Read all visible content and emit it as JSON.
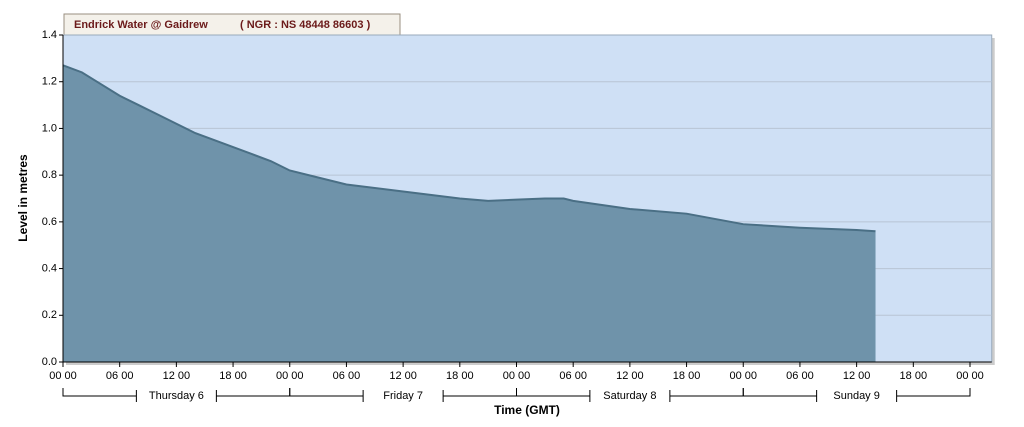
{
  "chart_data": {
    "type": "area",
    "title": "Endrick Water @ Gaidrew",
    "subtitle": "( NGR : NS 48448 86603 )",
    "y_label": "Level in metres",
    "x_label": "Time (GMT)",
    "xlim": [
      0,
      98.3
    ],
    "ylim": [
      0,
      1.4
    ],
    "yticks": [
      {
        "value": 0,
        "label": "0.0"
      },
      0.2,
      0.4,
      0.6,
      0.8,
      {
        "value": 1,
        "label": "1.0"
      },
      1.2,
      1.4
    ],
    "xticks": [
      {
        "value": 0,
        "label": "00 00"
      },
      {
        "value": 6,
        "label": "06 00"
      },
      {
        "value": 12,
        "label": "12 00"
      },
      {
        "value": 18,
        "label": "18 00"
      },
      {
        "value": 24,
        "label": "00 00"
      },
      {
        "value": 30,
        "label": "06 00"
      },
      {
        "value": 36,
        "label": "12 00"
      },
      {
        "value": 42,
        "label": "18 00"
      },
      {
        "value": 48,
        "label": "00 00"
      },
      {
        "value": 54,
        "label": "06 00"
      },
      {
        "value": 60,
        "label": "12 00"
      },
      {
        "value": 66,
        "label": "18 00"
      },
      {
        "value": 72,
        "label": "00 00"
      },
      {
        "value": 78,
        "label": "06 00"
      },
      {
        "value": 84,
        "label": "12 00"
      },
      {
        "value": 90,
        "label": "18 00"
      },
      {
        "value": 96,
        "label": "00 00"
      }
    ],
    "day_labels": [
      {
        "value": 12,
        "label": "Thursday 6"
      },
      {
        "value": 36,
        "label": "Friday 7"
      },
      {
        "value": 60,
        "label": "Saturday 8"
      },
      {
        "value": 84,
        "label": "Sunday 9"
      }
    ],
    "grid": true,
    "series": [
      {
        "name": "Level",
        "color": "#6f93aa",
        "x": [
          0,
          2,
          4,
          6,
          8,
          10,
          12,
          14,
          16,
          18,
          20,
          22,
          24,
          27,
          30,
          36,
          42,
          45,
          48,
          51,
          53,
          54,
          60,
          66,
          72,
          78,
          84,
          86
        ],
        "values": [
          1.27,
          1.24,
          1.19,
          1.14,
          1.1,
          1.06,
          1.02,
          0.98,
          0.95,
          0.92,
          0.89,
          0.86,
          0.82,
          0.79,
          0.76,
          0.73,
          0.7,
          0.69,
          0.695,
          0.7,
          0.7,
          0.69,
          0.655,
          0.635,
          0.59,
          0.575,
          0.565,
          0.56
        ]
      }
    ]
  }
}
